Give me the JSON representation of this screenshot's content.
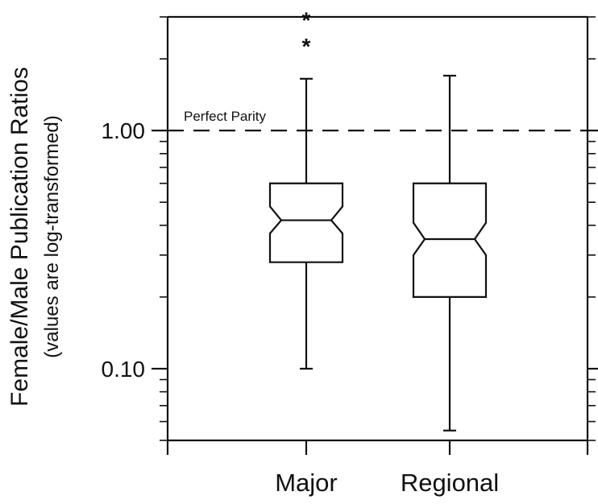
{
  "chart_data": {
    "type": "box",
    "title": "",
    "xlabel": "",
    "ylabel": "Female/Male Publication Ratios",
    "ylabel_sub": "(values are log-transformed)",
    "y_scale": "log",
    "ylim": [
      0.05,
      3.0
    ],
    "y_tick_labels": [
      "0.10",
      "1.00"
    ],
    "y_tick_values": [
      0.1,
      1.0
    ],
    "categories": [
      "Major",
      "Regional"
    ],
    "grid": false,
    "legend": "none",
    "reference_line": {
      "y": 1.0,
      "label": "Perfect Parity"
    },
    "boxes": [
      {
        "category": "Major",
        "whisker_low": 0.1,
        "q1": 0.28,
        "median": 0.42,
        "q3": 0.6,
        "whisker_high": 1.65,
        "notch_low": 0.37,
        "notch_high": 0.48,
        "outliers": [
          2.3,
          2.97
        ]
      },
      {
        "category": "Regional",
        "whisker_low": 0.055,
        "q1": 0.2,
        "median": 0.35,
        "q3": 0.6,
        "whisker_high": 1.7,
        "notch_low": 0.3,
        "notch_high": 0.41,
        "outliers": []
      }
    ]
  }
}
